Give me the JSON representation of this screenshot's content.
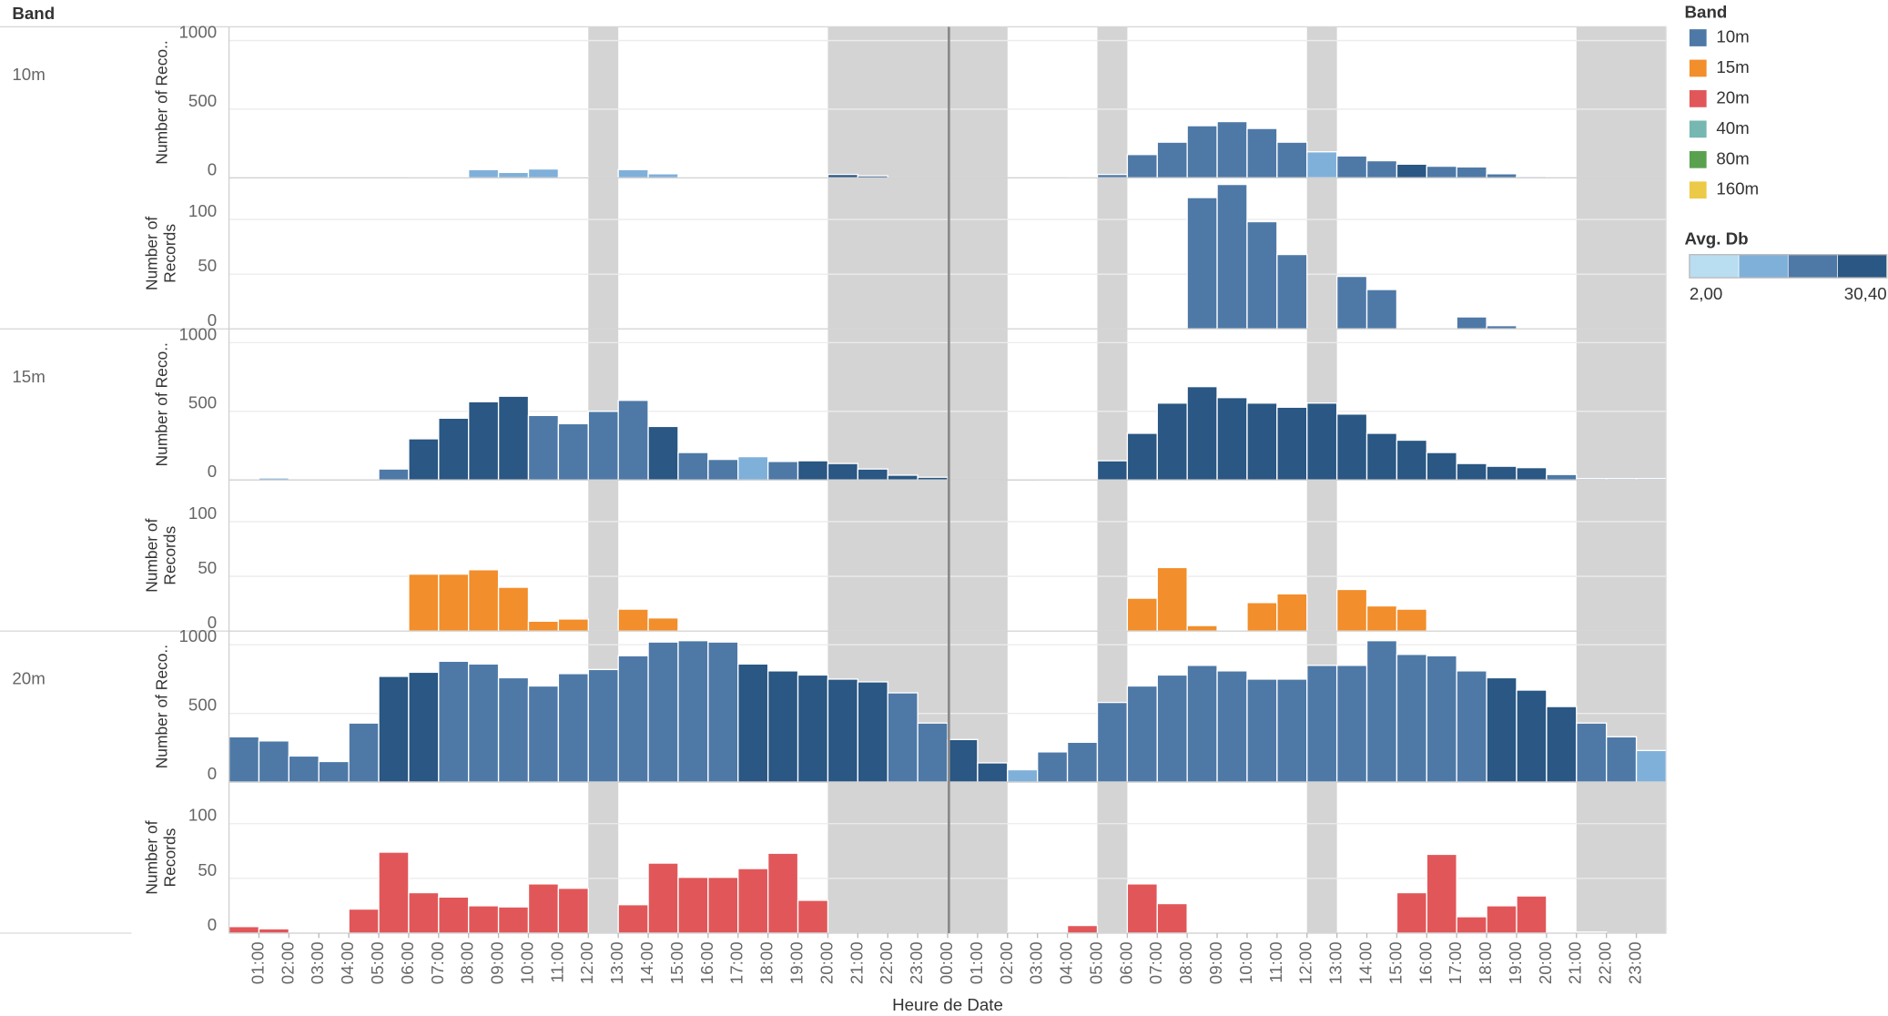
{
  "header": {
    "row_label": "Band"
  },
  "chart_data": {
    "type": "bar",
    "x_label": "Heure de Date",
    "x": [
      0,
      1,
      2,
      3,
      4,
      5,
      6,
      7,
      8,
      9,
      10,
      11,
      12,
      13,
      14,
      15,
      16,
      17,
      18,
      19,
      20,
      21,
      22,
      23,
      24,
      25,
      26,
      27,
      28,
      29,
      30,
      31,
      32,
      33,
      34,
      35,
      36,
      37,
      38,
      39,
      40,
      41,
      42,
      43,
      44,
      45,
      46,
      47
    ],
    "xlim": [
      0,
      48
    ],
    "xticks": [
      {
        "value": 1,
        "label": "01:00"
      },
      {
        "value": 2,
        "label": "02:00"
      },
      {
        "value": 3,
        "label": "03:00"
      },
      {
        "value": 4,
        "label": "04:00"
      },
      {
        "value": 5,
        "label": "05:00"
      },
      {
        "value": 6,
        "label": "06:00"
      },
      {
        "value": 7,
        "label": "07:00"
      },
      {
        "value": 8,
        "label": "08:00"
      },
      {
        "value": 9,
        "label": "09:00"
      },
      {
        "value": 10,
        "label": "10:00"
      },
      {
        "value": 11,
        "label": "11:00"
      },
      {
        "value": 12,
        "label": "12:00"
      },
      {
        "value": 13,
        "label": "13:00"
      },
      {
        "value": 14,
        "label": "14:00"
      },
      {
        "value": 15,
        "label": "15:00"
      },
      {
        "value": 16,
        "label": "16:00"
      },
      {
        "value": 17,
        "label": "17:00"
      },
      {
        "value": 18,
        "label": "18:00"
      },
      {
        "value": 19,
        "label": "19:00"
      },
      {
        "value": 20,
        "label": "20:00"
      },
      {
        "value": 21,
        "label": "21:00"
      },
      {
        "value": 22,
        "label": "22:00"
      },
      {
        "value": 23,
        "label": "23:00"
      },
      {
        "value": 24,
        "label": "00:00"
      },
      {
        "value": 25,
        "label": "01:00"
      },
      {
        "value": 26,
        "label": "02:00"
      },
      {
        "value": 27,
        "label": "03:00"
      },
      {
        "value": 28,
        "label": "04:00"
      },
      {
        "value": 29,
        "label": "05:00"
      },
      {
        "value": 30,
        "label": "06:00"
      },
      {
        "value": 31,
        "label": "07:00"
      },
      {
        "value": 32,
        "label": "08:00"
      },
      {
        "value": 33,
        "label": "09:00"
      },
      {
        "value": 34,
        "label": "10:00"
      },
      {
        "value": 35,
        "label": "11:00"
      },
      {
        "value": 36,
        "label": "12:00"
      },
      {
        "value": 37,
        "label": "13:00"
      },
      {
        "value": 38,
        "label": "14:00"
      },
      {
        "value": 39,
        "label": "15:00"
      },
      {
        "value": 40,
        "label": "16:00"
      },
      {
        "value": 41,
        "label": "17:00"
      },
      {
        "value": 42,
        "label": "18:00"
      },
      {
        "value": 43,
        "label": "19:00"
      },
      {
        "value": 44,
        "label": "20:00"
      },
      {
        "value": 45,
        "label": "21:00"
      },
      {
        "value": 46,
        "label": "22:00"
      },
      {
        "value": 47,
        "label": "23:00"
      }
    ],
    "highlight_ranges": [
      [
        12,
        13
      ],
      [
        20,
        26
      ],
      [
        29,
        30
      ],
      [
        36,
        37
      ],
      [
        45,
        48
      ]
    ],
    "highlight_color": "#d4d4d4",
    "palette": [
      "#b9ddf1",
      "#7fb0da",
      "#4e79a7",
      "#2a5783"
    ],
    "panels": [
      {
        "band": "10m",
        "y_label": "Number of Reco..",
        "ylim": [
          0,
          1100
        ],
        "yticks": [
          0,
          500,
          1000
        ],
        "values": [
          0,
          0,
          0,
          0,
          0,
          0,
          3,
          5,
          60,
          40,
          65,
          5,
          0,
          60,
          30,
          8,
          3,
          3,
          3,
          8,
          25,
          15,
          0,
          0,
          0,
          0,
          0,
          0,
          3,
          25,
          170,
          260,
          380,
          410,
          360,
          260,
          190,
          160,
          125,
          100,
          85,
          80,
          30,
          10,
          0,
          0,
          0,
          0
        ],
        "shades": [
          2,
          2,
          2,
          2,
          2,
          2,
          1,
          1,
          1,
          1,
          1,
          1,
          1,
          1,
          1,
          1,
          1,
          1,
          1,
          1,
          3,
          3,
          2,
          2,
          2,
          2,
          2,
          2,
          2,
          2,
          2,
          2,
          2,
          2,
          2,
          2,
          1,
          2,
          2,
          3,
          2,
          2,
          2,
          2,
          2,
          2,
          2,
          2
        ]
      },
      {
        "y_label": "Number of Records",
        "ylim": [
          0,
          138
        ],
        "yticks": [
          0,
          50,
          100
        ],
        "color": "#4e79a7",
        "values": [
          0,
          0,
          0,
          0,
          0,
          0,
          1,
          0,
          1,
          1,
          0,
          0,
          0,
          0,
          0,
          0,
          0,
          0,
          0,
          0,
          0,
          0,
          0,
          0,
          0,
          0,
          0,
          0,
          0,
          0,
          0,
          0,
          120,
          132,
          98,
          68,
          0,
          48,
          36,
          0,
          0,
          11,
          3,
          0,
          0,
          0,
          0,
          0
        ]
      },
      {
        "band": "15m",
        "y_label": "Number of Reco..",
        "ylim": [
          0,
          1100
        ],
        "yticks": [
          0,
          500,
          1000
        ],
        "values": [
          3,
          15,
          5,
          0,
          0,
          80,
          300,
          450,
          570,
          610,
          470,
          410,
          500,
          580,
          390,
          200,
          150,
          170,
          135,
          140,
          120,
          80,
          35,
          20,
          0,
          0,
          0,
          5,
          5,
          140,
          340,
          560,
          680,
          600,
          560,
          530,
          560,
          480,
          340,
          290,
          200,
          120,
          100,
          90,
          40,
          10,
          10,
          10
        ],
        "shades": [
          1,
          1,
          1,
          1,
          1,
          2,
          3,
          3,
          3,
          3,
          2,
          2,
          2,
          2,
          3,
          2,
          2,
          1,
          2,
          3,
          3,
          3,
          3,
          3,
          3,
          3,
          3,
          1,
          1,
          3,
          3,
          3,
          3,
          3,
          3,
          3,
          3,
          3,
          3,
          3,
          3,
          3,
          3,
          3,
          2,
          3,
          3,
          3
        ]
      },
      {
        "y_label": "Number of Records",
        "ylim": [
          0,
          138
        ],
        "yticks": [
          0,
          50,
          100
        ],
        "color": "#f28e2b",
        "values": [
          0,
          0,
          0,
          0,
          0,
          0,
          52,
          52,
          56,
          40,
          9,
          11,
          0,
          20,
          12,
          1,
          1,
          0,
          0,
          0,
          0,
          0,
          0,
          0,
          0,
          0,
          0,
          0,
          0,
          0,
          30,
          58,
          5,
          0,
          26,
          34,
          0,
          38,
          23,
          20,
          1,
          0,
          0,
          0,
          0,
          0,
          0,
          0
        ]
      },
      {
        "band": "20m",
        "y_label": "Number of Reco..",
        "ylim": [
          0,
          1100
        ],
        "yticks": [
          0,
          500,
          1000
        ],
        "values": [
          330,
          300,
          190,
          150,
          430,
          770,
          800,
          880,
          860,
          760,
          700,
          790,
          820,
          920,
          1020,
          1030,
          1020,
          860,
          810,
          780,
          750,
          730,
          650,
          430,
          310,
          140,
          90,
          220,
          290,
          580,
          700,
          780,
          850,
          810,
          750,
          750,
          850,
          850,
          1030,
          930,
          920,
          810,
          760,
          670,
          550,
          430,
          330,
          230
        ],
        "shades": [
          2,
          2,
          2,
          2,
          2,
          3,
          3,
          2,
          2,
          2,
          2,
          2,
          2,
          2,
          2,
          2,
          2,
          3,
          3,
          3,
          3,
          3,
          2,
          2,
          3,
          3,
          1,
          2,
          2,
          2,
          2,
          2,
          2,
          2,
          2,
          2,
          2,
          2,
          2,
          2,
          2,
          2,
          3,
          3,
          3,
          2,
          2,
          1
        ]
      },
      {
        "y_label": "Number of Records",
        "ylim": [
          0,
          138
        ],
        "yticks": [
          0,
          50,
          100
        ],
        "color": "#e15759",
        "values": [
          6,
          4,
          0,
          0,
          22,
          74,
          37,
          33,
          25,
          24,
          45,
          41,
          0,
          26,
          64,
          51,
          51,
          59,
          73,
          30,
          0,
          0,
          0,
          0,
          0,
          0,
          1,
          0,
          7,
          0,
          45,
          27,
          0,
          0,
          0,
          0,
          0,
          0,
          1,
          37,
          72,
          15,
          25,
          34,
          0,
          1,
          0,
          0
        ]
      }
    ],
    "legend": {
      "title": "Band",
      "items": [
        {
          "name": "10m",
          "color": "#4e79a7"
        },
        {
          "name": "15m",
          "color": "#f28e2b"
        },
        {
          "name": "20m",
          "color": "#e15759"
        },
        {
          "name": "40m",
          "color": "#76b7b2"
        },
        {
          "name": "80m",
          "color": "#59a14f"
        },
        {
          "name": "160m",
          "color": "#edc948"
        }
      ]
    },
    "color_legend": {
      "title": "Avg. Db",
      "min": {
        "value": 2,
        "label": "2,00"
      },
      "max": {
        "value": 30.4,
        "label": "30,40"
      }
    }
  }
}
